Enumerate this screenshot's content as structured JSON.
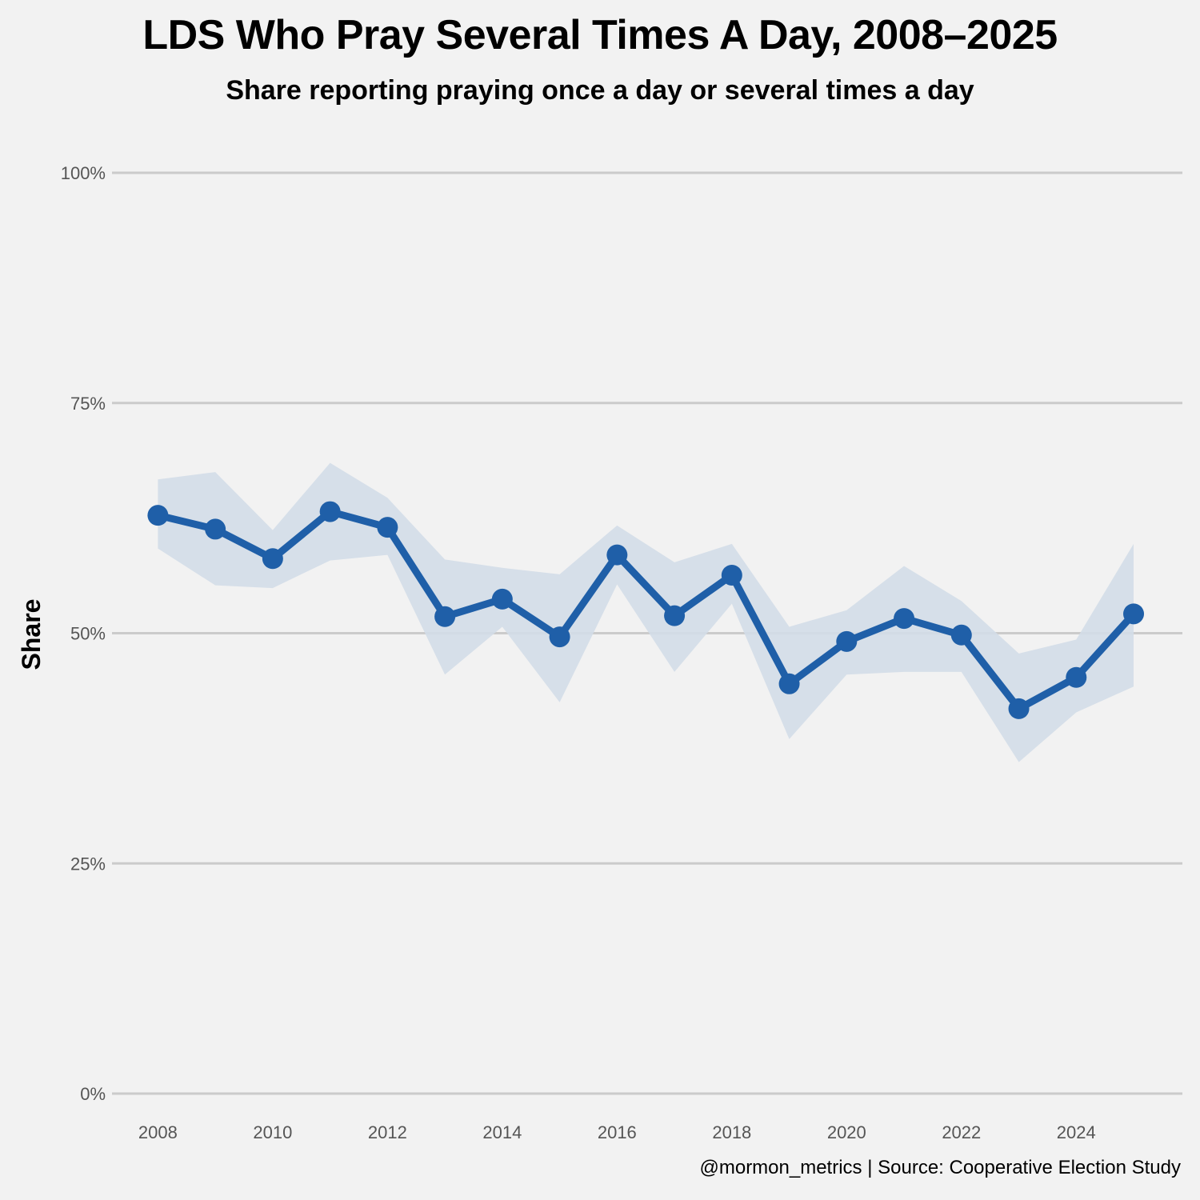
{
  "chart_data": {
    "type": "line",
    "title": "LDS Who Pray Several Times A Day, 2008–2025",
    "subtitle": "Share reporting praying once a day or several times a day",
    "ylabel": "Share",
    "xlabel": "",
    "caption": "@mormon_metrics | Source: Cooperative Election Study",
    "ylim": [
      0,
      1
    ],
    "xlim": [
      2007.2,
      2025.85
    ],
    "y_ticks": [
      0,
      0.25,
      0.5,
      0.75,
      1.0
    ],
    "y_tick_labels": [
      "0%",
      "25%",
      "50%",
      "75%",
      "100%"
    ],
    "x_ticks": [
      2008,
      2010,
      2012,
      2014,
      2016,
      2018,
      2020,
      2022,
      2024
    ],
    "x_tick_labels": [
      "2008",
      "2010",
      "2012",
      "2014",
      "2016",
      "2018",
      "2020",
      "2022",
      "2024"
    ],
    "grid": true,
    "series": [
      {
        "name": "Share",
        "color": "#1f5fa8",
        "band_color": "#d3dde8",
        "x": [
          2008,
          2009,
          2010,
          2011,
          2012,
          2013,
          2014,
          2015,
          2016,
          2017,
          2018,
          2019,
          2020,
          2021,
          2022,
          2023,
          2024,
          2025
        ],
        "values": [
          0.628,
          0.613,
          0.581,
          0.632,
          0.615,
          0.518,
          0.537,
          0.496,
          0.585,
          0.519,
          0.563,
          0.445,
          0.491,
          0.516,
          0.498,
          0.418,
          0.452,
          0.521
        ],
        "lower": [
          0.592,
          0.552,
          0.549,
          0.579,
          0.585,
          0.455,
          0.507,
          0.425,
          0.553,
          0.458,
          0.532,
          0.385,
          0.455,
          0.458,
          0.458,
          0.36,
          0.414,
          0.442
        ],
        "upper": [
          0.667,
          0.675,
          0.612,
          0.685,
          0.647,
          0.58,
          0.571,
          0.564,
          0.617,
          0.577,
          0.597,
          0.507,
          0.525,
          0.573,
          0.535,
          0.478,
          0.493,
          0.597
        ]
      }
    ]
  }
}
